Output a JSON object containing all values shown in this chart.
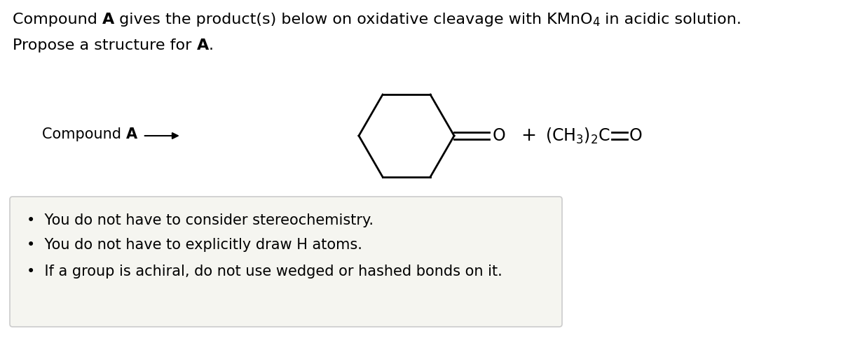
{
  "bg_color": "#ffffff",
  "box_color": "#f5f5f0",
  "box_edge_color": "#cccccc",
  "text_color": "#000000",
  "line_color": "#000000",
  "font_size_title": 16,
  "font_size_body": 15,
  "bullet_points": [
    "You do not have to consider stereochemistry.",
    "You do not have to explicitly draw H atoms.",
    "If a group is achiral, do not use wedged or hashed bonds on it."
  ]
}
